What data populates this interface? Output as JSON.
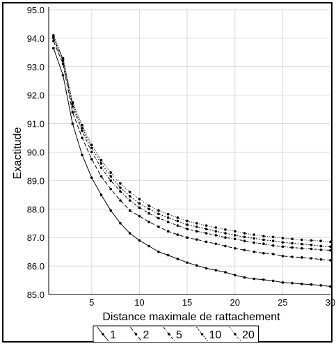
{
  "chart_data": {
    "type": "line",
    "xlabel": "Distance maximale de rattachement",
    "ylabel": "Exactitude",
    "xlim": [
      0.5,
      30
    ],
    "ylim": [
      85.0,
      95.0
    ],
    "xticks": [
      5,
      10,
      15,
      20,
      25,
      30
    ],
    "yticks": [
      85.0,
      86.0,
      87.0,
      88.0,
      89.0,
      90.0,
      91.0,
      92.0,
      93.0,
      94.0,
      95.0
    ],
    "ytick_labels": [
      "85.0",
      "86.0",
      "87.0",
      "88.0",
      "89.0",
      "90.0",
      "91.0",
      "92.0",
      "93.0",
      "94.0",
      "95.0"
    ],
    "grid": true,
    "legend_position": "bottom",
    "x": [
      1,
      2,
      3,
      4,
      5,
      6,
      7,
      8,
      9,
      10,
      11,
      12,
      13,
      14,
      15,
      16,
      17,
      18,
      19,
      20,
      21,
      22,
      23,
      24,
      25,
      26,
      27,
      28,
      29,
      30
    ],
    "series": [
      {
        "name": "1",
        "dash": "",
        "marker": true,
        "values": [
          93.65,
          92.7,
          91.0,
          89.9,
          89.1,
          88.5,
          87.95,
          87.5,
          87.15,
          86.9,
          86.7,
          86.5,
          86.38,
          86.25,
          86.12,
          86.02,
          85.92,
          85.85,
          85.78,
          85.68,
          85.6,
          85.55,
          85.52,
          85.48,
          85.42,
          85.4,
          85.37,
          85.35,
          85.32,
          85.28
        ]
      },
      {
        "name": "2",
        "dash": "6 3",
        "marker": true,
        "values": [
          93.9,
          93.1,
          91.4,
          90.5,
          89.75,
          89.15,
          88.7,
          88.3,
          87.95,
          87.75,
          87.55,
          87.38,
          87.22,
          87.1,
          87.0,
          86.93,
          86.85,
          86.78,
          86.7,
          86.62,
          86.56,
          86.5,
          86.45,
          86.42,
          86.35,
          86.32,
          86.3,
          86.27,
          86.23,
          86.2
        ]
      },
      {
        "name": "5",
        "dash": "4 2 1 2",
        "marker": true,
        "values": [
          94.0,
          93.2,
          91.6,
          90.75,
          90.0,
          89.45,
          89.0,
          88.62,
          88.3,
          88.05,
          87.85,
          87.68,
          87.55,
          87.42,
          87.3,
          87.22,
          87.15,
          87.08,
          87.0,
          86.95,
          86.88,
          86.82,
          86.78,
          86.72,
          86.68,
          86.65,
          86.62,
          86.6,
          86.57,
          86.55
        ]
      },
      {
        "name": "10",
        "dash": "2 2",
        "marker": true,
        "values": [
          94.05,
          93.25,
          91.7,
          90.85,
          90.15,
          89.6,
          89.15,
          88.75,
          88.45,
          88.2,
          88.0,
          87.83,
          87.7,
          87.58,
          87.45,
          87.38,
          87.3,
          87.22,
          87.15,
          87.08,
          87.02,
          86.97,
          86.92,
          86.88,
          86.83,
          86.8,
          86.77,
          86.74,
          86.7,
          86.68
        ]
      },
      {
        "name": "20",
        "dash": "1 2",
        "marker": true,
        "values": [
          94.1,
          93.3,
          91.75,
          90.95,
          90.25,
          89.72,
          89.28,
          88.9,
          88.6,
          88.35,
          88.12,
          87.95,
          87.82,
          87.7,
          87.58,
          87.5,
          87.42,
          87.35,
          87.28,
          87.22,
          87.15,
          87.1,
          87.05,
          87.02,
          86.98,
          86.95,
          86.92,
          86.9,
          86.88,
          86.85
        ]
      }
    ]
  },
  "colors": {
    "line": "#000000",
    "grid": "#d9d9d9",
    "axis": "#000000"
  }
}
